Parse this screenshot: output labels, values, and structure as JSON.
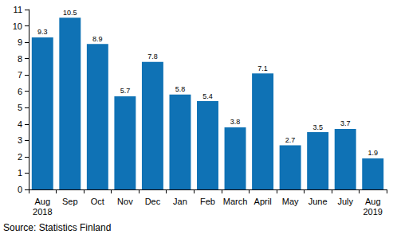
{
  "chart_data": {
    "type": "bar",
    "categories": [
      "Aug\n2018",
      "Sep",
      "Oct",
      "Nov",
      "Dec",
      "Jan",
      "Feb",
      "March",
      "April",
      "May",
      "June",
      "July",
      "Aug\n2019"
    ],
    "values": [
      9.3,
      10.5,
      8.9,
      5.7,
      7.8,
      5.8,
      5.4,
      3.8,
      7.1,
      2.7,
      3.5,
      3.7,
      1.9
    ],
    "color": "#0f72b5",
    "ylim": [
      0,
      11
    ],
    "yticks": [
      0,
      1,
      2,
      3,
      4,
      5,
      6,
      7,
      8,
      9,
      10,
      11
    ],
    "grid": false,
    "data_labels": true,
    "source": "Source: Statistics Finland"
  }
}
